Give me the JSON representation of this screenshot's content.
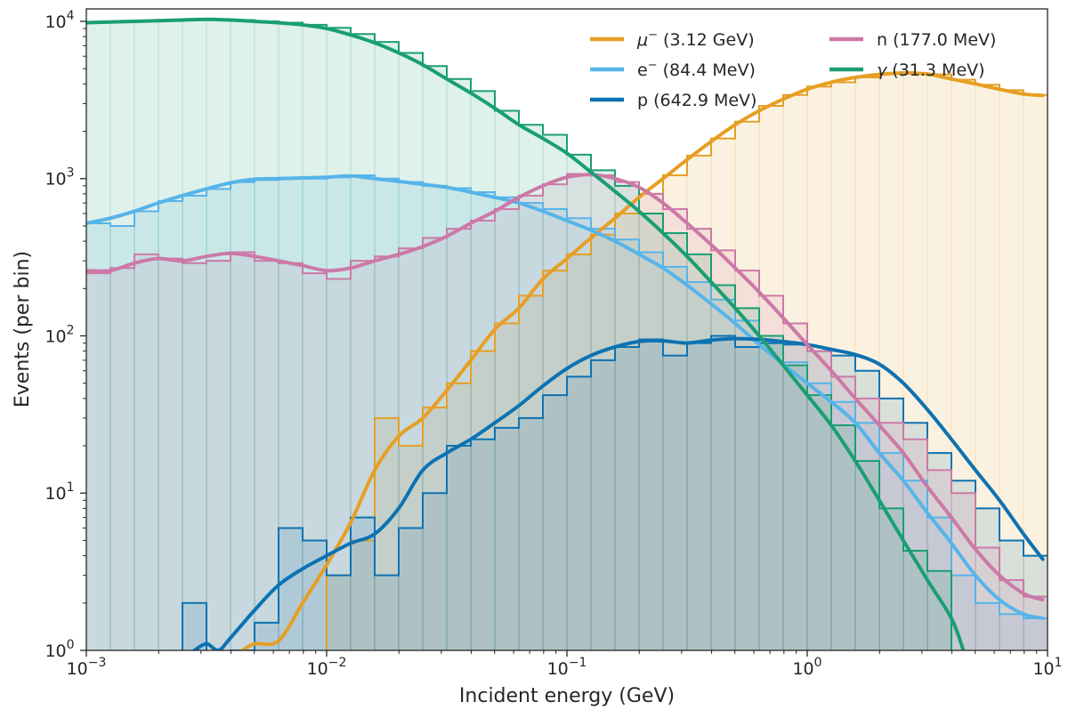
{
  "chart_data": {
    "type": "line",
    "xlabel": "Incident energy (GeV)",
    "ylabel": "Events (per bin)",
    "xscale": "log",
    "yscale": "log",
    "xlim": [
      0.001,
      10
    ],
    "ylim": [
      1,
      12000
    ],
    "x_ticks": [
      {
        "value": 0.001,
        "base": "10",
        "exp": "−3"
      },
      {
        "value": 0.01,
        "base": "10",
        "exp": "−2"
      },
      {
        "value": 0.1,
        "base": "10",
        "exp": "−1"
      },
      {
        "value": 1,
        "base": "10",
        "exp": "0"
      },
      {
        "value": 10,
        "base": "10",
        "exp": "1"
      }
    ],
    "y_ticks": [
      {
        "value": 1,
        "base": "10",
        "exp": "0"
      },
      {
        "value": 10,
        "base": "10",
        "exp": "1"
      },
      {
        "value": 100,
        "base": "10",
        "exp": "2"
      },
      {
        "value": 1000,
        "base": "10",
        "exp": "3"
      },
      {
        "value": 10000,
        "base": "10",
        "exp": "4"
      }
    ],
    "grid": false,
    "legend_position": "top-right",
    "histogram_bin_edges_log10": [
      -3.0,
      -2.9,
      -2.8,
      -2.7,
      -2.6,
      -2.5,
      -2.4,
      -2.3,
      -2.2,
      -2.1,
      -2.0,
      -1.9,
      -1.8,
      -1.7,
      -1.6,
      -1.5,
      -1.4,
      -1.3,
      -1.2,
      -1.1,
      -1.0,
      -0.9,
      -0.8,
      -0.7,
      -0.6,
      -0.5,
      -0.4,
      -0.3,
      -0.2,
      -0.1,
      0.0,
      0.1,
      0.2,
      0.3,
      0.4,
      0.5,
      0.6,
      0.7,
      0.8,
      0.9,
      1.0
    ],
    "series": [
      {
        "name": "μ⁻ (3.12 GeV)",
        "legend_main": "μ",
        "legend_sup": "−",
        "legend_rest": " (3.12 GeV)",
        "color": "#E69F25",
        "smooth": [
          [
            -2.35,
            1.0
          ],
          [
            -2.3,
            1.1
          ],
          [
            -2.2,
            1.15
          ],
          [
            -2.1,
            2.0
          ],
          [
            -2.0,
            3.5
          ],
          [
            -1.9,
            6.5
          ],
          [
            -1.8,
            14
          ],
          [
            -1.7,
            23
          ],
          [
            -1.6,
            30
          ],
          [
            -1.5,
            45
          ],
          [
            -1.4,
            70
          ],
          [
            -1.3,
            110
          ],
          [
            -1.2,
            150
          ],
          [
            -1.1,
            230
          ],
          [
            -1.0,
            310
          ],
          [
            -0.9,
            420
          ],
          [
            -0.8,
            560
          ],
          [
            -0.7,
            760
          ],
          [
            -0.6,
            1000
          ],
          [
            -0.5,
            1320
          ],
          [
            -0.4,
            1720
          ],
          [
            -0.3,
            2200
          ],
          [
            -0.2,
            2700
          ],
          [
            -0.1,
            3200
          ],
          [
            0.0,
            3700
          ],
          [
            0.1,
            4100
          ],
          [
            0.2,
            4400
          ],
          [
            0.3,
            4600
          ],
          [
            0.4,
            4700
          ],
          [
            0.5,
            4620
          ],
          [
            0.6,
            4300
          ],
          [
            0.7,
            4000
          ],
          [
            0.8,
            3700
          ],
          [
            0.9,
            3450
          ],
          [
            0.98,
            3380
          ]
        ],
        "hist": [
          0.5,
          0.5,
          0.5,
          0.5,
          0.5,
          0.5,
          0.5,
          0.5,
          0.5,
          0.5,
          3,
          5,
          30,
          20,
          35,
          50,
          80,
          120,
          180,
          260,
          330,
          440,
          600,
          800,
          1050,
          1400,
          1800,
          2300,
          2900,
          3400,
          3850,
          4100,
          4400,
          4650,
          4700,
          4600,
          4250,
          3950,
          3650,
          3400
        ]
      },
      {
        "name": "e⁻ (84.4 MeV)",
        "legend_main": "e",
        "legend_sup": "−",
        "legend_rest": " (84.4 MeV)",
        "color": "#56B4E9",
        "smooth": [
          [
            -3.0,
            520
          ],
          [
            -2.9,
            560
          ],
          [
            -2.8,
            620
          ],
          [
            -2.7,
            700
          ],
          [
            -2.6,
            780
          ],
          [
            -2.5,
            860
          ],
          [
            -2.4,
            940
          ],
          [
            -2.3,
            990
          ],
          [
            -2.2,
            1000
          ],
          [
            -2.1,
            1010
          ],
          [
            -2.0,
            1020
          ],
          [
            -1.9,
            1040
          ],
          [
            -1.8,
            1000
          ],
          [
            -1.7,
            960
          ],
          [
            -1.6,
            920
          ],
          [
            -1.5,
            880
          ],
          [
            -1.4,
            820
          ],
          [
            -1.3,
            760
          ],
          [
            -1.2,
            700
          ],
          [
            -1.1,
            620
          ],
          [
            -1.0,
            540
          ],
          [
            -0.9,
            470
          ],
          [
            -0.8,
            400
          ],
          [
            -0.7,
            330
          ],
          [
            -0.6,
            270
          ],
          [
            -0.5,
            210
          ],
          [
            -0.4,
            160
          ],
          [
            -0.3,
            120
          ],
          [
            -0.2,
            88
          ],
          [
            -0.1,
            66
          ],
          [
            0.0,
            50
          ],
          [
            0.1,
            38
          ],
          [
            0.2,
            28
          ],
          [
            0.3,
            18
          ],
          [
            0.4,
            12
          ],
          [
            0.5,
            7.5
          ],
          [
            0.6,
            4.8
          ],
          [
            0.7,
            3.0
          ],
          [
            0.8,
            2.1
          ],
          [
            0.9,
            1.7
          ],
          [
            0.98,
            1.6
          ]
        ],
        "hist": [
          520,
          500,
          620,
          720,
          780,
          860,
          950,
          980,
          1000,
          1000,
          1020,
          1050,
          1000,
          950,
          900,
          870,
          820,
          760,
          700,
          640,
          560,
          480,
          410,
          340,
          275,
          220,
          170,
          125,
          90,
          68,
          50,
          38,
          28,
          18,
          12,
          7,
          3,
          2,
          1.7,
          1.6
        ]
      },
      {
        "name": "p (642.9 MeV)",
        "legend_main": "p",
        "legend_sup": "",
        "legend_rest": " (642.9 MeV)",
        "color": "#0D72B2",
        "smooth": [
          [
            -2.55,
            1.0
          ],
          [
            -2.5,
            1.1
          ],
          [
            -2.45,
            1.0
          ],
          [
            -2.4,
            1.2
          ],
          [
            -2.3,
            1.8
          ],
          [
            -2.2,
            2.6
          ],
          [
            -2.1,
            3.3
          ],
          [
            -2.0,
            4.0
          ],
          [
            -1.9,
            4.8
          ],
          [
            -1.8,
            5.5
          ],
          [
            -1.7,
            8.0
          ],
          [
            -1.6,
            14
          ],
          [
            -1.5,
            18
          ],
          [
            -1.4,
            22
          ],
          [
            -1.3,
            28
          ],
          [
            -1.2,
            36
          ],
          [
            -1.1,
            48
          ],
          [
            -1.0,
            62
          ],
          [
            -0.9,
            75
          ],
          [
            -0.8,
            85
          ],
          [
            -0.7,
            92
          ],
          [
            -0.6,
            93
          ],
          [
            -0.5,
            90
          ],
          [
            -0.4,
            94
          ],
          [
            -0.3,
            96
          ],
          [
            -0.2,
            95
          ],
          [
            -0.1,
            92
          ],
          [
            0.0,
            88
          ],
          [
            0.1,
            82
          ],
          [
            0.2,
            76
          ],
          [
            0.3,
            66
          ],
          [
            0.4,
            50
          ],
          [
            0.5,
            34
          ],
          [
            0.6,
            22
          ],
          [
            0.7,
            14
          ],
          [
            0.8,
            9
          ],
          [
            0.9,
            5.5
          ],
          [
            0.98,
            3.8
          ]
        ],
        "hist": [
          0.5,
          0.5,
          0.5,
          0.5,
          2,
          0.5,
          1,
          1.5,
          6,
          5,
          3,
          7,
          3,
          6,
          10,
          20,
          22,
          26,
          30,
          42,
          55,
          70,
          85,
          95,
          75,
          90,
          100,
          85,
          90,
          88,
          80,
          75,
          60,
          40,
          28,
          18,
          12,
          8,
          5,
          4
        ]
      },
      {
        "name": "n (177.0 MeV)",
        "legend_main": "n",
        "legend_sup": "",
        "legend_rest": " (177.0 MeV)",
        "color": "#CC79A7",
        "smooth": [
          [
            -3.0,
            260
          ],
          [
            -2.9,
            260
          ],
          [
            -2.8,
            290
          ],
          [
            -2.7,
            310
          ],
          [
            -2.6,
            300
          ],
          [
            -2.5,
            320
          ],
          [
            -2.4,
            335
          ],
          [
            -2.3,
            320
          ],
          [
            -2.2,
            300
          ],
          [
            -2.1,
            280
          ],
          [
            -2.0,
            260
          ],
          [
            -1.9,
            270
          ],
          [
            -1.8,
            300
          ],
          [
            -1.7,
            330
          ],
          [
            -1.6,
            370
          ],
          [
            -1.5,
            430
          ],
          [
            -1.4,
            520
          ],
          [
            -1.3,
            620
          ],
          [
            -1.2,
            760
          ],
          [
            -1.1,
            900
          ],
          [
            -1.0,
            1020
          ],
          [
            -0.9,
            1060
          ],
          [
            -0.8,
            1000
          ],
          [
            -0.7,
            880
          ],
          [
            -0.6,
            700
          ],
          [
            -0.5,
            520
          ],
          [
            -0.4,
            380
          ],
          [
            -0.3,
            270
          ],
          [
            -0.2,
            190
          ],
          [
            -0.1,
            130
          ],
          [
            0.0,
            88
          ],
          [
            0.1,
            60
          ],
          [
            0.2,
            40
          ],
          [
            0.3,
            27
          ],
          [
            0.4,
            18
          ],
          [
            0.5,
            11
          ],
          [
            0.6,
            7.0
          ],
          [
            0.7,
            4.4
          ],
          [
            0.8,
            3.0
          ],
          [
            0.9,
            2.3
          ],
          [
            0.98,
            2.1
          ]
        ],
        "hist": [
          250,
          270,
          330,
          310,
          290,
          300,
          340,
          300,
          290,
          250,
          230,
          300,
          320,
          360,
          420,
          480,
          540,
          640,
          780,
          920,
          1070,
          1050,
          950,
          800,
          640,
          480,
          350,
          260,
          180,
          120,
          80,
          55,
          40,
          28,
          22,
          14,
          10,
          4.5,
          2.8,
          2.2
        ]
      },
      {
        "name": "γ (31.3 MeV)",
        "legend_main": "γ",
        "legend_sup": "",
        "legend_rest": " (31.3 MeV)",
        "color": "#1A9E73",
        "smooth": [
          [
            -3.0,
            9800
          ],
          [
            -2.9,
            9900
          ],
          [
            -2.8,
            10000
          ],
          [
            -2.7,
            10100
          ],
          [
            -2.6,
            10200
          ],
          [
            -2.5,
            10300
          ],
          [
            -2.4,
            10200
          ],
          [
            -2.3,
            10000
          ],
          [
            -2.2,
            9800
          ],
          [
            -2.1,
            9500
          ],
          [
            -2.0,
            9000
          ],
          [
            -1.9,
            8200
          ],
          [
            -1.8,
            7300
          ],
          [
            -1.7,
            6300
          ],
          [
            -1.6,
            5300
          ],
          [
            -1.5,
            4300
          ],
          [
            -1.4,
            3500
          ],
          [
            -1.3,
            2800
          ],
          [
            -1.2,
            2200
          ],
          [
            -1.1,
            1800
          ],
          [
            -1.0,
            1450
          ],
          [
            -0.9,
            1100
          ],
          [
            -0.8,
            830
          ],
          [
            -0.7,
            620
          ],
          [
            -0.6,
            450
          ],
          [
            -0.5,
            320
          ],
          [
            -0.4,
            220
          ],
          [
            -0.3,
            150
          ],
          [
            -0.2,
            100
          ],
          [
            -0.1,
            65
          ],
          [
            0.0,
            42
          ],
          [
            0.1,
            27
          ],
          [
            0.2,
            16
          ],
          [
            0.3,
            9
          ],
          [
            0.4,
            5.0
          ],
          [
            0.5,
            2.8
          ],
          [
            0.6,
            1.6
          ],
          [
            0.65,
            1.0
          ]
        ],
        "hist": [
          9900,
          9900,
          10000,
          10100,
          10300,
          10300,
          10200,
          10000,
          9800,
          9500,
          9100,
          8300,
          7400,
          6300,
          5200,
          4300,
          3600,
          2700,
          2200,
          1900,
          1420,
          1130,
          900,
          600,
          450,
          330,
          210,
          150,
          100,
          65,
          42,
          27,
          16,
          8,
          4.3,
          3.2,
          0.5,
          0.5,
          0.5,
          0.5
        ]
      }
    ]
  }
}
